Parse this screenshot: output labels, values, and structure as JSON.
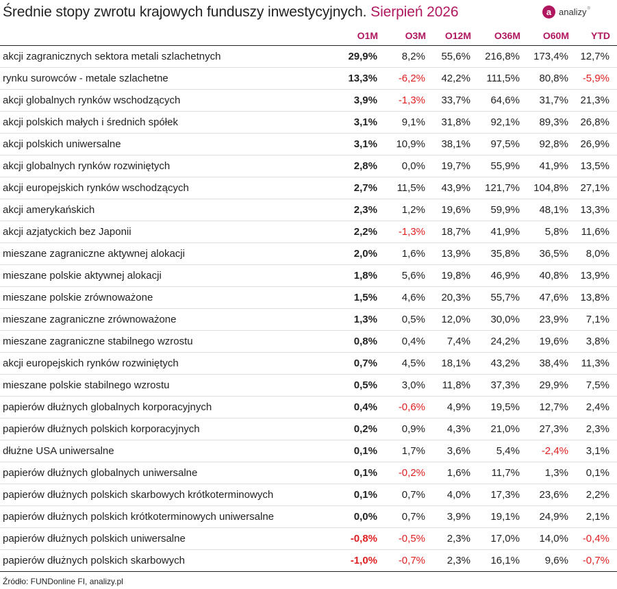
{
  "title": {
    "main": "Średnie stopy zwrotu krajowych funduszy inwestycyjnych.",
    "accent": "Sierpień 2026"
  },
  "logo": {
    "text": "analizy",
    "mark": "a",
    "superscript": "®"
  },
  "colors": {
    "accent": "#b0175e",
    "negative": "#e02020",
    "text": "#222222",
    "rule": "#dddddd"
  },
  "table": {
    "columns": [
      "",
      "O1M",
      "O3M",
      "O12M",
      "O36M",
      "O60M",
      "YTD"
    ],
    "rows": [
      [
        "akcji zagranicznych sektora metali szlachetnych",
        "29,9%",
        "8,2%",
        "55,6%",
        "216,8%",
        "173,4%",
        "12,7%"
      ],
      [
        "rynku surowców - metale szlachetne",
        "13,3%",
        "-6,2%",
        "42,2%",
        "111,5%",
        "80,8%",
        "-5,9%"
      ],
      [
        "akcji globalnych rynków wschodzących",
        "3,9%",
        "-1,3%",
        "33,7%",
        "64,6%",
        "31,7%",
        "21,3%"
      ],
      [
        "akcji polskich małych i średnich spółek",
        "3,1%",
        "9,1%",
        "31,8%",
        "92,1%",
        "89,3%",
        "26,8%"
      ],
      [
        "akcji polskich uniwersalne",
        "3,1%",
        "10,9%",
        "38,1%",
        "97,5%",
        "92,8%",
        "26,9%"
      ],
      [
        "akcji globalnych rynków rozwiniętych",
        "2,8%",
        "0,0%",
        "19,7%",
        "55,9%",
        "41,9%",
        "13,5%"
      ],
      [
        "akcji europejskich rynków wschodzących",
        "2,7%",
        "11,5%",
        "43,9%",
        "121,7%",
        "104,8%",
        "27,1%"
      ],
      [
        "akcji amerykańskich",
        "2,3%",
        "1,2%",
        "19,6%",
        "59,9%",
        "48,1%",
        "13,3%"
      ],
      [
        "akcji azjatyckich bez Japonii",
        "2,2%",
        "-1,3%",
        "18,7%",
        "41,9%",
        "5,8%",
        "11,6%"
      ],
      [
        "mieszane zagraniczne aktywnej alokacji",
        "2,0%",
        "1,6%",
        "13,9%",
        "35,8%",
        "36,5%",
        "8,0%"
      ],
      [
        "mieszane polskie aktywnej alokacji",
        "1,8%",
        "5,6%",
        "19,8%",
        "46,9%",
        "40,8%",
        "13,9%"
      ],
      [
        "mieszane polskie zrównoważone",
        "1,5%",
        "4,6%",
        "20,3%",
        "55,7%",
        "47,6%",
        "13,8%"
      ],
      [
        "mieszane zagraniczne zrównoważone",
        "1,3%",
        "0,5%",
        "12,0%",
        "30,0%",
        "23,9%",
        "7,1%"
      ],
      [
        "mieszane zagraniczne stabilnego wzrostu",
        "0,8%",
        "0,4%",
        "7,4%",
        "24,2%",
        "19,6%",
        "3,8%"
      ],
      [
        "akcji europejskich rynków rozwiniętych",
        "0,7%",
        "4,5%",
        "18,1%",
        "43,2%",
        "38,4%",
        "11,3%"
      ],
      [
        "mieszane polskie stabilnego wzrostu",
        "0,5%",
        "3,0%",
        "11,8%",
        "37,3%",
        "29,9%",
        "7,5%"
      ],
      [
        "papierów dłużnych globalnych korporacyjnych",
        "0,4%",
        "-0,6%",
        "4,9%",
        "19,5%",
        "12,7%",
        "2,4%"
      ],
      [
        "papierów dłużnych polskich korporacyjnych",
        "0,2%",
        "0,9%",
        "4,3%",
        "21,0%",
        "27,3%",
        "2,3%"
      ],
      [
        "dłużne USA uniwersalne",
        "0,1%",
        "1,7%",
        "3,6%",
        "5,4%",
        "-2,4%",
        "3,1%"
      ],
      [
        "papierów dłużnych globalnych uniwersalne",
        "0,1%",
        "-0,2%",
        "1,6%",
        "11,7%",
        "1,3%",
        "0,1%"
      ],
      [
        "papierów dłużnych polskich skarbowych krótkoterminowych",
        "0,1%",
        "0,7%",
        "4,0%",
        "17,3%",
        "23,6%",
        "2,2%"
      ],
      [
        "papierów dłużnych polskich krótkoterminowych uniwersalne",
        "0,0%",
        "0,7%",
        "3,9%",
        "19,1%",
        "24,9%",
        "2,1%"
      ],
      [
        "papierów dłużnych polskich uniwersalne",
        "-0,8%",
        "-0,5%",
        "2,3%",
        "17,0%",
        "14,0%",
        "-0,4%"
      ],
      [
        "papierów dłużnych polskich skarbowych",
        "-1,0%",
        "-0,7%",
        "2,3%",
        "16,1%",
        "9,6%",
        "-0,7%"
      ]
    ]
  },
  "source": "Źródło: FUNDonline FI, analizy.pl"
}
